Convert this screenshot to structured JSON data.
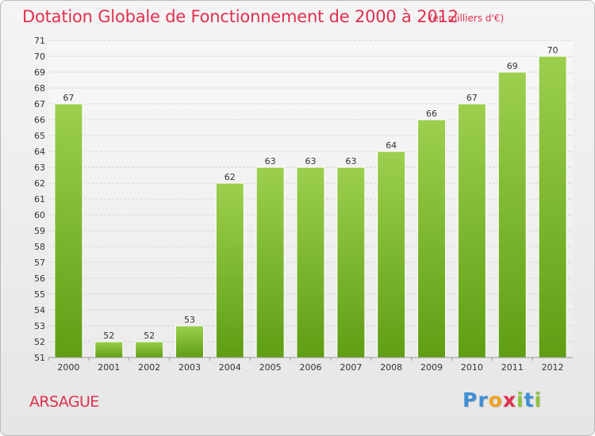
{
  "title": "Dotation Globale de Fonctionnement de 2000 à 2012",
  "subtitle": "(en milliers d'€)",
  "commune": "ARSAGUE",
  "logo": {
    "letters": [
      "P",
      "r",
      "o",
      "x",
      "i",
      "t",
      "i"
    ],
    "colors": [
      "#3f8fd4",
      "#3f8fd4",
      "#f0a020",
      "#e0304e",
      "#8cc43c",
      "#3f8fd4",
      "#8cc43c"
    ]
  },
  "colors": {
    "bar": "#7fbf2e",
    "title": "#e0304e"
  },
  "chart_data": {
    "type": "bar",
    "title": "Dotation Globale de Fonctionnement de 2000 à 2012",
    "subtitle": "(en milliers d'€)",
    "categories": [
      "2000",
      "2001",
      "2002",
      "2003",
      "2004",
      "2005",
      "2006",
      "2007",
      "2008",
      "2009",
      "2010",
      "2011",
      "2012"
    ],
    "values": [
      67,
      52,
      52,
      53,
      62,
      63,
      63,
      63,
      64,
      66,
      67,
      69,
      70
    ],
    "ylim": [
      51,
      71
    ],
    "yticks": [
      51,
      52,
      53,
      54,
      55,
      56,
      57,
      58,
      59,
      60,
      61,
      62,
      63,
      64,
      65,
      66,
      67,
      68,
      69,
      70,
      71
    ],
    "grid": true,
    "xlabel": "",
    "ylabel": ""
  }
}
